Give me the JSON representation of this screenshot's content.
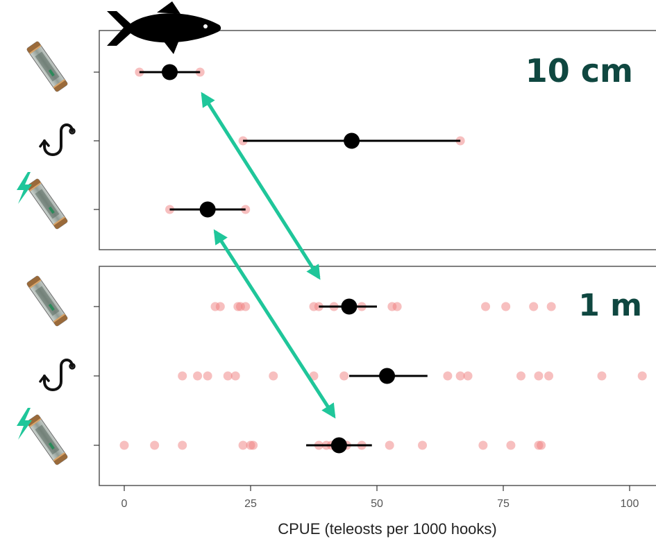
{
  "chart_data": {
    "type": "scatter",
    "xlabel": "CPUE (teleosts per 1000 hooks)",
    "xlim": [
      -5,
      105
    ],
    "xticks": [
      0,
      25,
      50,
      75,
      100
    ],
    "categories": [
      "device",
      "hook",
      "electric-device"
    ],
    "colors": {
      "points": "#f08080",
      "mean": "#000000",
      "arrow": "#1fc69a",
      "frame": "#555555",
      "panel_label": "#0f4740"
    },
    "panels": [
      {
        "label": "10 cm",
        "rows": [
          {
            "category": "device",
            "icon": "light-stick-icon",
            "mean": 9,
            "ci": [
              3,
              15
            ],
            "points": [
              3,
              15
            ]
          },
          {
            "category": "hook",
            "icon": "fishing-hook-icon",
            "mean": 45,
            "ci": [
              23.5,
              66.5
            ],
            "points": [
              23.5,
              66.5
            ]
          },
          {
            "category": "electric-device",
            "icon": "electric-light-stick-icon",
            "mean": 16.5,
            "ci": [
              9,
              24
            ],
            "points": [
              9,
              24
            ]
          }
        ]
      },
      {
        "label": "1 m",
        "rows": [
          {
            "category": "device",
            "icon": "light-stick-icon",
            "mean": 44.5,
            "ci": [
              38.5,
              50
            ],
            "points": [
              18,
              19,
              22.5,
              23,
              24,
              37.5,
              38.5,
              41.5,
              47,
              53,
              54,
              71.5,
              75.5,
              81,
              84.5
            ]
          },
          {
            "category": "hook",
            "icon": "fishing-hook-icon",
            "mean": 52,
            "ci": [
              44.5,
              60
            ],
            "points": [
              11.5,
              14.5,
              16.5,
              20.5,
              22,
              29.5,
              37.5,
              43.5,
              64,
              66.5,
              68,
              78.5,
              82,
              84,
              94.5,
              102.5
            ]
          },
          {
            "category": "electric-device",
            "icon": "electric-light-stick-icon",
            "mean": 42.5,
            "ci": [
              36,
              49
            ],
            "points": [
              0,
              6,
              11.5,
              23.5,
              25,
              25.5,
              38.5,
              40,
              41,
              44,
              47,
              52.5,
              59,
              71,
              76.5,
              82,
              82.5
            ]
          }
        ]
      }
    ],
    "arrows": [
      {
        "from": {
          "panel": 0,
          "row": 0,
          "x": 15.5
        },
        "to": {
          "panel": 1,
          "row": 0,
          "x": 38.5
        }
      },
      {
        "from": {
          "panel": 0,
          "row": 2,
          "x": 18
        },
        "to": {
          "panel": 1,
          "row": 2,
          "x": 41.5
        }
      }
    ]
  },
  "decor": {
    "top_icon": "tuna-fish-icon"
  }
}
